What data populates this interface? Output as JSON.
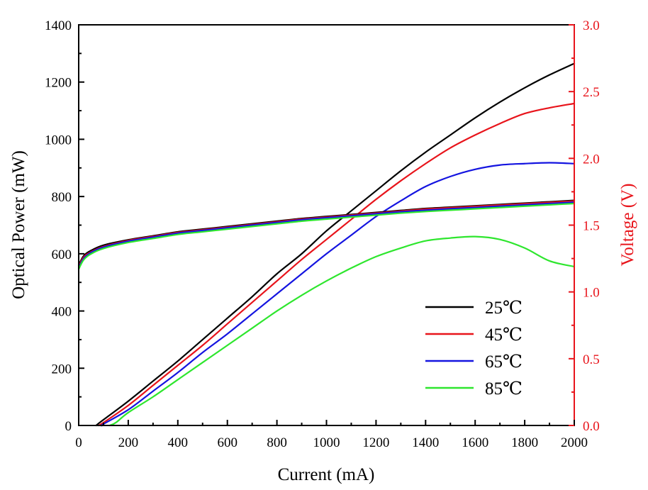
{
  "chart_data": {
    "type": "line",
    "xlabel": "Current (mA)",
    "ylabel": "Optical Power (mW)",
    "y2label": "Voltage (V)",
    "xlim": [
      0,
      2000
    ],
    "ylim": [
      0,
      1400
    ],
    "y2lim": [
      0,
      3.0
    ],
    "x_ticks": [
      0,
      200,
      400,
      600,
      800,
      1000,
      1200,
      1400,
      1600,
      1800,
      2000
    ],
    "x_tick_labels": [
      "0",
      "200",
      "400",
      "600",
      "800",
      "1000",
      "1200",
      "1400",
      "1600",
      "1800",
      "2000"
    ],
    "y_ticks": [
      0,
      200,
      400,
      600,
      800,
      1000,
      1200,
      1400
    ],
    "y_tick_labels": [
      "0",
      "200",
      "400",
      "600",
      "800",
      "1000",
      "1200",
      "1400"
    ],
    "y2_ticks": [
      0,
      0.5,
      1.0,
      1.5,
      2.0,
      2.5,
      3.0
    ],
    "y2_tick_labels": [
      "0.0",
      "0.5",
      "1.0",
      "1.5",
      "2.0",
      "2.5",
      "3.0"
    ],
    "grid": false,
    "legend_position": "bottom-right",
    "colors": {
      "axis_left": "#000000",
      "axis_right": "#e8141b"
    },
    "series": [
      {
        "name": "25℃",
        "color": "#000000",
        "power": {
          "x": [
            70,
            100,
            200,
            300,
            400,
            500,
            600,
            700,
            800,
            900,
            1000,
            1100,
            1200,
            1300,
            1400,
            1500,
            1600,
            1700,
            1800,
            1900,
            2000
          ],
          "y": [
            0,
            20,
            85,
            155,
            225,
            300,
            375,
            450,
            530,
            600,
            680,
            750,
            820,
            890,
            955,
            1015,
            1075,
            1130,
            1180,
            1225,
            1265
          ]
        },
        "voltage": {
          "x": [
            0,
            20,
            50,
            100,
            200,
            300,
            400,
            500,
            600,
            700,
            800,
            900,
            1000,
            1100,
            1200,
            1300,
            1400,
            1500,
            1600,
            1700,
            1800,
            1900,
            2000
          ],
          "y": [
            1.2,
            1.27,
            1.31,
            1.35,
            1.39,
            1.42,
            1.45,
            1.47,
            1.49,
            1.51,
            1.53,
            1.55,
            1.565,
            1.58,
            1.595,
            1.61,
            1.625,
            1.635,
            1.645,
            1.655,
            1.665,
            1.675,
            1.685
          ]
        }
      },
      {
        "name": "45℃",
        "color": "#e8141b",
        "power": {
          "x": [
            80,
            100,
            200,
            300,
            400,
            500,
            600,
            700,
            800,
            900,
            1000,
            1100,
            1200,
            1300,
            1400,
            1500,
            1600,
            1700,
            1800,
            1900,
            2000
          ],
          "y": [
            0,
            10,
            70,
            140,
            210,
            280,
            355,
            430,
            505,
            580,
            650,
            720,
            790,
            855,
            915,
            970,
            1015,
            1055,
            1090,
            1110,
            1125
          ]
        },
        "voltage": {
          "x": [
            0,
            20,
            50,
            100,
            200,
            300,
            400,
            500,
            600,
            700,
            800,
            900,
            1000,
            1100,
            1200,
            1300,
            1400,
            1500,
            1600,
            1700,
            1800,
            1900,
            2000
          ],
          "y": [
            1.19,
            1.26,
            1.3,
            1.34,
            1.385,
            1.415,
            1.445,
            1.465,
            1.485,
            1.505,
            1.525,
            1.545,
            1.56,
            1.575,
            1.59,
            1.605,
            1.62,
            1.63,
            1.64,
            1.65,
            1.66,
            1.67,
            1.68
          ]
        }
      },
      {
        "name": "65℃",
        "color": "#1414e0",
        "power": {
          "x": [
            95,
            100,
            200,
            300,
            400,
            500,
            600,
            700,
            800,
            900,
            1000,
            1100,
            1200,
            1300,
            1400,
            1500,
            1600,
            1700,
            1800,
            1900,
            2000
          ],
          "y": [
            0,
            5,
            55,
            120,
            185,
            255,
            320,
            390,
            460,
            530,
            600,
            665,
            730,
            785,
            835,
            870,
            895,
            910,
            915,
            918,
            915
          ]
        },
        "voltage": {
          "x": [
            0,
            20,
            50,
            100,
            200,
            300,
            400,
            500,
            600,
            700,
            800,
            900,
            1000,
            1100,
            1200,
            1300,
            1400,
            1500,
            1600,
            1700,
            1800,
            1900,
            2000
          ],
          "y": [
            1.18,
            1.25,
            1.295,
            1.335,
            1.38,
            1.41,
            1.44,
            1.46,
            1.48,
            1.5,
            1.52,
            1.54,
            1.555,
            1.57,
            1.585,
            1.6,
            1.612,
            1.622,
            1.632,
            1.642,
            1.652,
            1.662,
            1.672
          ]
        }
      },
      {
        "name": "85℃",
        "color": "#2ee62e",
        "power": {
          "x": [
            125,
            150,
            200,
            300,
            400,
            500,
            600,
            700,
            800,
            900,
            1000,
            1100,
            1200,
            1300,
            1400,
            1500,
            1600,
            1700,
            1800,
            1900,
            2000
          ],
          "y": [
            0,
            10,
            45,
            100,
            160,
            220,
            280,
            340,
            400,
            455,
            505,
            550,
            590,
            620,
            645,
            655,
            660,
            650,
            620,
            575,
            555
          ]
        },
        "voltage": {
          "x": [
            0,
            20,
            50,
            100,
            200,
            300,
            400,
            500,
            600,
            700,
            800,
            900,
            1000,
            1100,
            1200,
            1300,
            1400,
            1500,
            1600,
            1700,
            1800,
            1900,
            2000
          ],
          "y": [
            1.17,
            1.24,
            1.285,
            1.325,
            1.37,
            1.4,
            1.43,
            1.45,
            1.47,
            1.49,
            1.51,
            1.53,
            1.545,
            1.56,
            1.575,
            1.59,
            1.602,
            1.612,
            1.622,
            1.632,
            1.642,
            1.652,
            1.662
          ]
        }
      }
    ]
  }
}
